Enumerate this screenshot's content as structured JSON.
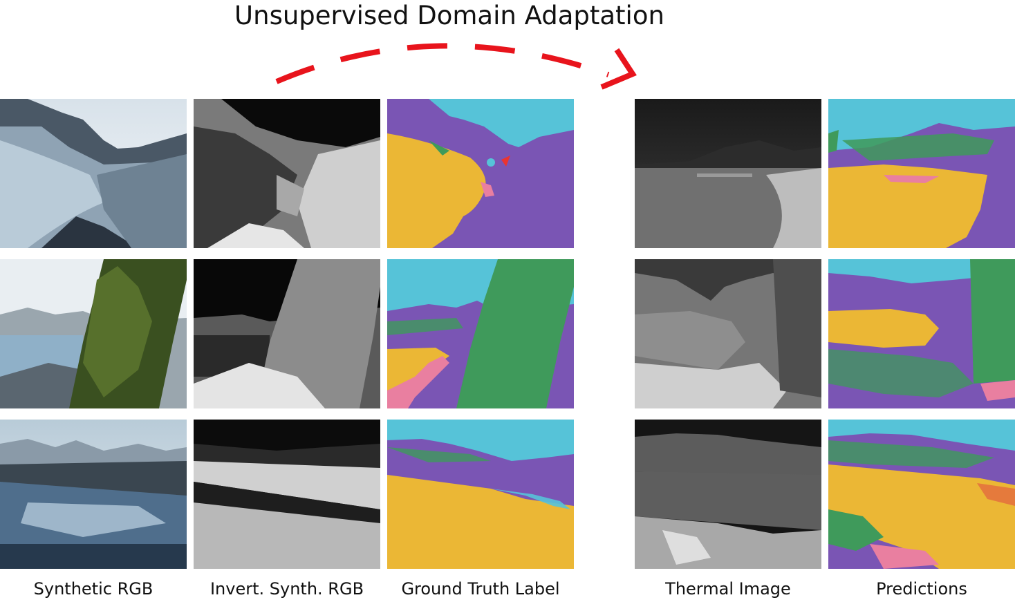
{
  "title": "Unsupervised Domain Adaptation",
  "captions": {
    "synthetic_rgb": "Synthetic RGB",
    "inverted_synth_rgb": "Invert. Synth. RGB",
    "ground_truth": "Ground Truth Label",
    "thermal_image": "Thermal Image",
    "predictions": "Predictions"
  },
  "colors": {
    "sky": "#56c3d8",
    "terrain": "#7a55b4",
    "water": "#ebb735",
    "tree": "#3f9a5b",
    "rock": "#e97fa0",
    "object": "#ea3430",
    "other": "#e57a3c",
    "arrow": "#e8141c"
  },
  "rows": 3,
  "columns": [
    "synthetic_rgb",
    "inverted_synth_rgb",
    "ground_truth",
    "thermal_image",
    "predictions"
  ]
}
